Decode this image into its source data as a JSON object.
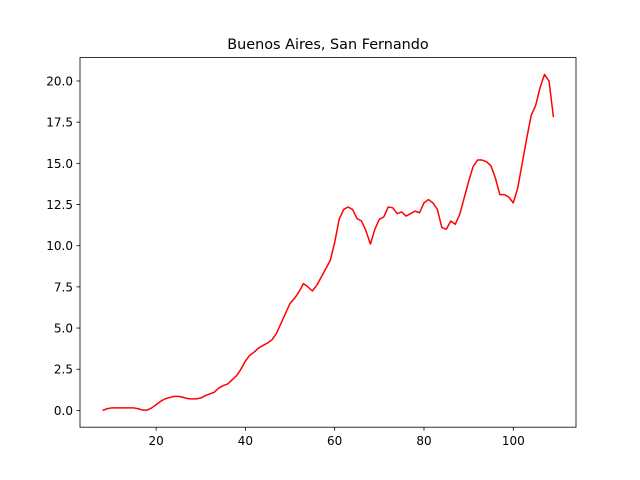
{
  "chart_data": {
    "type": "line",
    "title": "Buenos Aires, San Fernando",
    "x": [
      8,
      9,
      10,
      11,
      12,
      13,
      14,
      15,
      16,
      17,
      18,
      19,
      20,
      21,
      22,
      23,
      24,
      25,
      26,
      27,
      28,
      29,
      30,
      31,
      32,
      33,
      34,
      35,
      36,
      37,
      38,
      39,
      40,
      41,
      42,
      43,
      44,
      45,
      46,
      47,
      48,
      49,
      50,
      51,
      52,
      53,
      54,
      55,
      56,
      57,
      58,
      59,
      60,
      61,
      62,
      63,
      64,
      65,
      66,
      67,
      68,
      69,
      70,
      71,
      72,
      73,
      74,
      75,
      76,
      77,
      78,
      79,
      80,
      81,
      82,
      83,
      84,
      85,
      86,
      87,
      88,
      89,
      90,
      91,
      92,
      93,
      94,
      95,
      96,
      97,
      98,
      99,
      100,
      101,
      102,
      103,
      104,
      105,
      106,
      107,
      108,
      109
    ],
    "series": [
      {
        "name": "Buenos Aires, San Fernando",
        "color": "#ff0000",
        "values": [
          0,
          0.1,
          0.15,
          0.15,
          0.15,
          0.15,
          0.15,
          0.15,
          0.1,
          0.02,
          0.02,
          0.15,
          0.35,
          0.55,
          0.7,
          0.78,
          0.85,
          0.85,
          0.8,
          0.72,
          0.7,
          0.7,
          0.75,
          0.9,
          1.0,
          1.1,
          1.35,
          1.5,
          1.6,
          1.85,
          2.1,
          2.5,
          3.0,
          3.35,
          3.55,
          3.8,
          3.95,
          4.1,
          4.3,
          4.7,
          5.3,
          5.9,
          6.5,
          6.8,
          7.2,
          7.7,
          7.5,
          7.25,
          7.6,
          8.1,
          8.6,
          9.1,
          10.2,
          11.6,
          12.2,
          12.35,
          12.2,
          11.65,
          11.5,
          10.9,
          10.1,
          11.0,
          11.6,
          11.75,
          12.35,
          12.3,
          11.95,
          12.05,
          11.8,
          11.95,
          12.1,
          12.0,
          12.6,
          12.8,
          12.6,
          12.2,
          11.1,
          11.0,
          11.5,
          11.3,
          11.9,
          12.9,
          13.9,
          14.8,
          15.2,
          15.2,
          15.1,
          14.85,
          14.1,
          13.1,
          13.1,
          12.95,
          12.6,
          13.5,
          15.0,
          16.5,
          17.9,
          18.5,
          19.6,
          20.4,
          20.0,
          17.8
        ]
      }
    ],
    "xlim": [
      2.95,
      114.05
    ],
    "xticks": [
      20,
      40,
      60,
      80,
      100
    ],
    "ylim": [
      -1.02,
      21.42
    ],
    "yticks": [
      {
        "value": 0,
        "label": "0.0"
      },
      {
        "value": 2.5,
        "label": "2.5"
      },
      {
        "value": 5,
        "label": "5.0"
      },
      {
        "value": 7.5,
        "label": "7.5"
      },
      {
        "value": 10,
        "label": "10.0"
      },
      {
        "value": 12.5,
        "label": "12.5"
      },
      {
        "value": 15,
        "label": "15.0"
      },
      {
        "value": 17.5,
        "label": "17.5"
      },
      {
        "value": 20,
        "label": "20.0"
      }
    ],
    "grid": false
  }
}
